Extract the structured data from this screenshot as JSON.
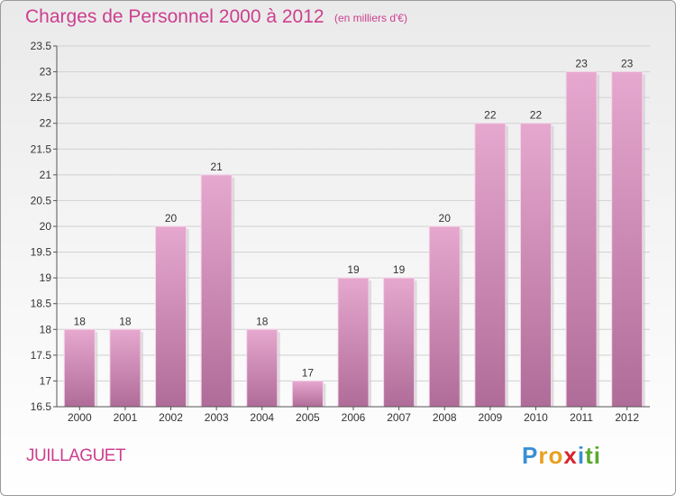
{
  "header": {
    "title": "Charges de Personnel 2000 à 2012",
    "subtitle": "(en milliers d'€)"
  },
  "footer": {
    "commune": "JUILLAGUET",
    "logo_letters": [
      "P",
      "r",
      "o",
      "x",
      "i",
      "t",
      "i"
    ],
    "logo_colors": [
      "#3a8fd6",
      "#e8a020",
      "#e8a020",
      "#d9242c",
      "#3a8fd6",
      "#5aaa2c",
      "#5aaa2c"
    ]
  },
  "colors": {
    "bar_top": "#e6a8cf",
    "bar_bottom": "#b06c98",
    "title": "#cc3f8e"
  },
  "chart_data": {
    "type": "bar",
    "categories": [
      "2000",
      "2001",
      "2002",
      "2003",
      "2004",
      "2005",
      "2006",
      "2007",
      "2008",
      "2009",
      "2010",
      "2011",
      "2012"
    ],
    "values": [
      18,
      18,
      20,
      21,
      18,
      17,
      19,
      19,
      20,
      22,
      22,
      23,
      23
    ],
    "data_labels": [
      "18",
      "18",
      "20",
      "21",
      "18",
      "17",
      "19",
      "19",
      "20",
      "22",
      "22",
      "23",
      "23"
    ],
    "ylim": [
      16.5,
      23.5
    ],
    "yticks": [
      16.5,
      17,
      17.5,
      18,
      18.5,
      19,
      19.5,
      20,
      20.5,
      21,
      21.5,
      22,
      22.5,
      23,
      23.5
    ],
    "ytick_labels": [
      "16.5",
      "17",
      "17.5",
      "18",
      "18.5",
      "19",
      "19.5",
      "20",
      "20.5",
      "21",
      "21.5",
      "22",
      "22.5",
      "23",
      "23.5"
    ],
    "grid": true,
    "xlabel": "",
    "ylabel": ""
  }
}
